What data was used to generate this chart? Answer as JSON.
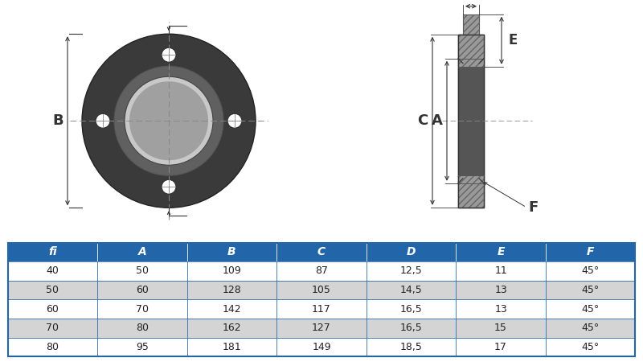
{
  "table_headers": [
    "fi",
    "A",
    "B",
    "C",
    "D",
    "E",
    "F"
  ],
  "table_rows": [
    [
      "40",
      "50",
      "109",
      "87",
      "12,5",
      "11",
      "45°"
    ],
    [
      "50",
      "60",
      "128",
      "105",
      "14,5",
      "13",
      "45°"
    ],
    [
      "60",
      "70",
      "142",
      "117",
      "16,5",
      "13",
      "45°"
    ],
    [
      "70",
      "80",
      "162",
      "127",
      "16,5",
      "15",
      "45°"
    ],
    [
      "80",
      "95",
      "181",
      "149",
      "18,5",
      "17",
      "45°"
    ]
  ],
  "header_bg": "#2265A8",
  "header_fg": "#FFFFFF",
  "row_alt_bg": "#D4D4D4",
  "row_bg": "#FFFFFF",
  "border_color": "#2265A8",
  "bg_color": "#FFFFFF",
  "dim_color": "#333333",
  "flange_dark": "#3A3A3A",
  "flange_mid": "#606060",
  "flange_light": "#909090",
  "hatch_color": "#888888"
}
